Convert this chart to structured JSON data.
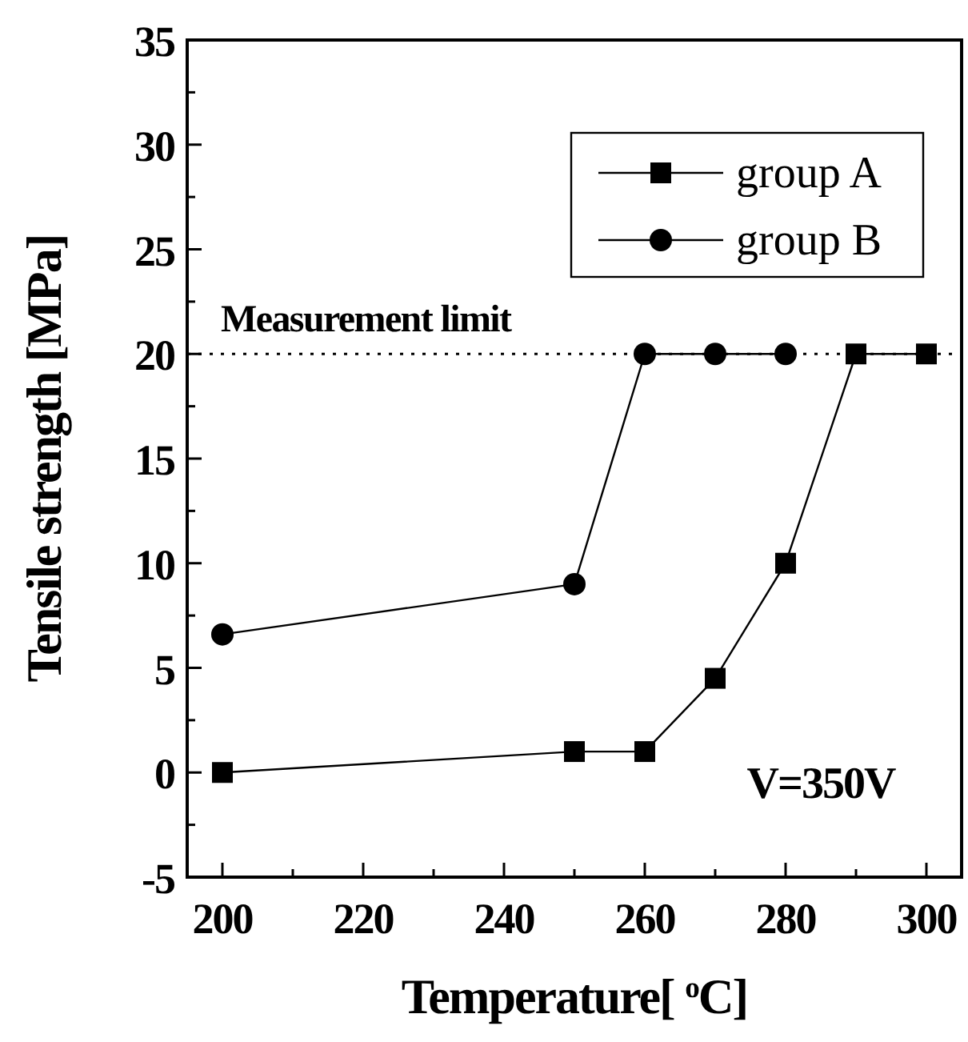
{
  "chart_data": {
    "type": "line",
    "xlabel": "Temperature[ $^{o}$C]",
    "ylabel": "Tensile strength [MPa]",
    "xlim": [
      195,
      305
    ],
    "xticks": [
      200,
      {
        "value": 210,
        "label": null
      },
      220,
      {
        "value": 230,
        "label": null
      },
      240,
      {
        "value": 250,
        "label": null
      },
      260,
      {
        "value": 270,
        "label": null
      },
      280,
      {
        "value": 290,
        "label": null
      },
      300
    ],
    "ylim": [
      -5,
      35
    ],
    "yticks": [
      -5,
      {
        "value": -2.5,
        "label": null
      },
      0,
      {
        "value": 2.5,
        "label": null
      },
      5,
      {
        "value": 7.5,
        "label": null
      },
      10,
      {
        "value": 12.5,
        "label": null
      },
      15,
      {
        "value": 17.5,
        "label": null
      },
      20,
      {
        "value": 22.5,
        "label": null
      },
      25,
      {
        "value": 27.5,
        "label": null
      },
      30,
      {
        "value": 32.5,
        "label": null
      },
      35
    ],
    "series": [
      {
        "name": "group A",
        "color": "#000000",
        "marker": "square",
        "x": [
          200,
          250,
          260,
          270,
          280,
          290,
          300
        ],
        "values": [
          0,
          1,
          1,
          4.5,
          10,
          20,
          20
        ]
      },
      {
        "name": "group B",
        "color": "#000000",
        "marker": "circle",
        "x": [
          200,
          250,
          260,
          270,
          280
        ],
        "values": [
          6.6,
          9,
          20,
          20,
          20
        ]
      }
    ],
    "ref_lines": [
      {
        "axis": "y",
        "value": 20,
        "label": "Measurement limit",
        "line_style": "dotted",
        "color": "#000000"
      }
    ],
    "annotations": [
      "V=350V"
    ],
    "legend": "top right",
    "line_style": "solid",
    "grid": false
  }
}
